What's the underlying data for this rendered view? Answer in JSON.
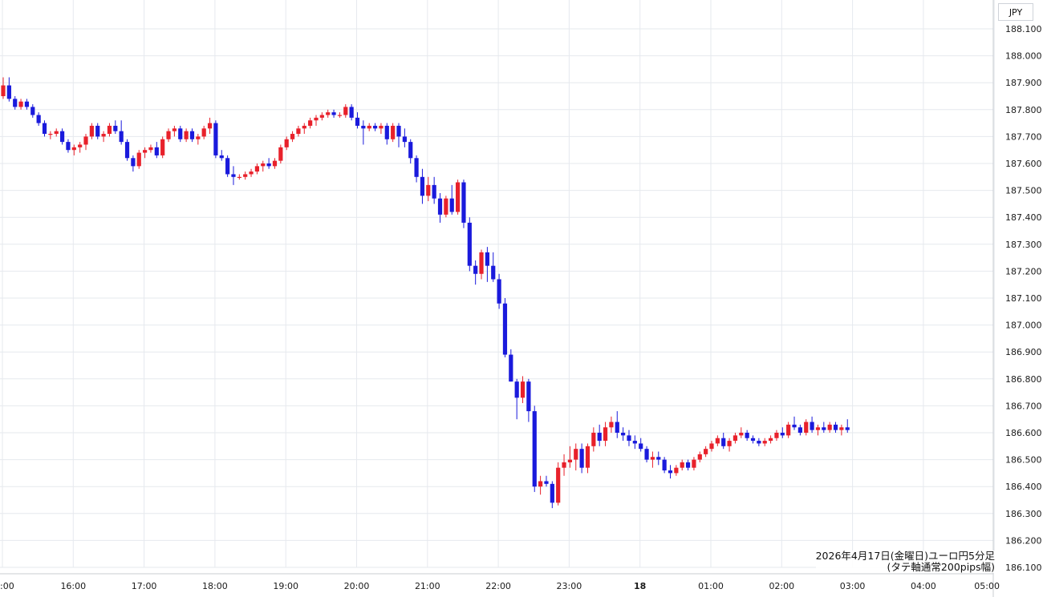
{
  "currency_label": "JPY",
  "caption": {
    "line1": "2026年4月17日(金曜日)ユーロ円5分足",
    "line2": "(タテ軸通常200pips幅)"
  },
  "colors": {
    "up": "#e8212b",
    "down": "#1a1adc",
    "grid": "#e6e9ee"
  },
  "chart_data": {
    "type": "candlestick",
    "ylim": [
      186.1,
      188.1
    ],
    "y_ticks": [
      "188.100",
      "188.000",
      "187.900",
      "187.800",
      "187.700",
      "187.600",
      "187.500",
      "187.400",
      "187.300",
      "187.200",
      "187.100",
      "187.000",
      "186.900",
      "186.800",
      "186.700",
      "186.600",
      "186.500",
      "186.400",
      "186.300",
      "186.200",
      "186.100"
    ],
    "x_ticks": [
      {
        "label": ":00",
        "t": 0,
        "bold": false
      },
      {
        "label": "16:00",
        "t": 1,
        "bold": false
      },
      {
        "label": "17:00",
        "t": 2,
        "bold": false
      },
      {
        "label": "18:00",
        "t": 3,
        "bold": false
      },
      {
        "label": "19:00",
        "t": 4,
        "bold": false
      },
      {
        "label": "20:00",
        "t": 5,
        "bold": false
      },
      {
        "label": "21:00",
        "t": 6,
        "bold": false
      },
      {
        "label": "22:00",
        "t": 7,
        "bold": false
      },
      {
        "label": "23:00",
        "t": 8,
        "bold": false
      },
      {
        "label": "18",
        "t": 9,
        "bold": true
      },
      {
        "label": "01:00",
        "t": 10,
        "bold": false
      },
      {
        "label": "02:00",
        "t": 11,
        "bold": false
      },
      {
        "label": "03:00",
        "t": 12,
        "bold": false
      },
      {
        "label": "04:00",
        "t": 13,
        "bold": false
      },
      {
        "label": "05:00",
        "t": 14,
        "bold": false
      }
    ],
    "candles": [
      [
        187.85,
        187.92,
        187.84,
        187.89
      ],
      [
        187.89,
        187.92,
        187.83,
        187.84
      ],
      [
        187.84,
        187.85,
        187.8,
        187.81
      ],
      [
        187.81,
        187.84,
        187.8,
        187.83
      ],
      [
        187.83,
        187.84,
        187.8,
        187.81
      ],
      [
        187.81,
        187.82,
        187.77,
        187.78
      ],
      [
        187.78,
        187.79,
        187.74,
        187.75
      ],
      [
        187.75,
        187.76,
        187.7,
        187.71
      ],
      [
        187.71,
        187.72,
        187.69,
        187.71
      ],
      [
        187.71,
        187.73,
        187.7,
        187.72
      ],
      [
        187.72,
        187.73,
        187.67,
        187.68
      ],
      [
        187.68,
        187.69,
        187.64,
        187.65
      ],
      [
        187.65,
        187.67,
        187.63,
        187.66
      ],
      [
        187.66,
        187.68,
        187.64,
        187.67
      ],
      [
        187.67,
        187.71,
        187.65,
        187.7
      ],
      [
        187.7,
        187.75,
        187.69,
        187.74
      ],
      [
        187.74,
        187.75,
        187.69,
        187.7
      ],
      [
        187.7,
        187.72,
        187.68,
        187.71
      ],
      [
        187.71,
        187.75,
        187.7,
        187.74
      ],
      [
        187.74,
        187.76,
        187.71,
        187.72
      ],
      [
        187.72,
        187.76,
        187.67,
        187.68
      ],
      [
        187.68,
        187.69,
        187.61,
        187.62
      ],
      [
        187.62,
        187.63,
        187.57,
        187.59
      ],
      [
        187.59,
        187.65,
        187.58,
        187.64
      ],
      [
        187.64,
        187.66,
        187.62,
        187.65
      ],
      [
        187.65,
        187.67,
        187.64,
        187.66
      ],
      [
        187.66,
        187.68,
        187.62,
        187.63
      ],
      [
        187.63,
        187.7,
        187.62,
        187.69
      ],
      [
        187.69,
        187.73,
        187.68,
        187.72
      ],
      [
        187.72,
        187.74,
        187.7,
        187.73
      ],
      [
        187.73,
        187.74,
        187.68,
        187.69
      ],
      [
        187.69,
        187.73,
        187.68,
        187.72
      ],
      [
        187.72,
        187.73,
        187.68,
        187.69
      ],
      [
        187.69,
        187.71,
        187.67,
        187.7
      ],
      [
        187.7,
        187.74,
        187.69,
        187.73
      ],
      [
        187.73,
        187.77,
        187.71,
        187.75
      ],
      [
        187.75,
        187.76,
        187.62,
        187.63
      ],
      [
        187.63,
        187.65,
        187.61,
        187.62
      ],
      [
        187.62,
        187.63,
        187.55,
        187.56
      ],
      [
        187.56,
        187.59,
        187.52,
        187.55
      ],
      [
        187.55,
        187.56,
        187.54,
        187.55
      ],
      [
        187.55,
        187.57,
        187.54,
        187.56
      ],
      [
        187.56,
        187.58,
        187.55,
        187.57
      ],
      [
        187.57,
        187.6,
        187.56,
        187.59
      ],
      [
        187.59,
        187.61,
        187.57,
        187.6
      ],
      [
        187.6,
        187.62,
        187.58,
        187.59
      ],
      [
        187.59,
        187.62,
        187.58,
        187.61
      ],
      [
        187.61,
        187.67,
        187.6,
        187.66
      ],
      [
        187.66,
        187.7,
        187.65,
        187.69
      ],
      [
        187.69,
        187.72,
        187.68,
        187.71
      ],
      [
        187.71,
        187.74,
        187.7,
        187.73
      ],
      [
        187.73,
        187.75,
        187.71,
        187.74
      ],
      [
        187.74,
        187.77,
        187.73,
        187.76
      ],
      [
        187.76,
        187.78,
        187.74,
        187.77
      ],
      [
        187.77,
        187.79,
        187.76,
        187.78
      ],
      [
        187.78,
        187.8,
        187.77,
        187.79
      ],
      [
        187.79,
        187.8,
        187.77,
        187.78
      ],
      [
        187.78,
        187.79,
        187.77,
        187.78
      ],
      [
        187.78,
        187.82,
        187.77,
        187.81
      ],
      [
        187.81,
        187.82,
        187.76,
        187.77
      ],
      [
        187.77,
        187.79,
        187.73,
        187.74
      ],
      [
        187.74,
        187.76,
        187.67,
        187.73
      ],
      [
        187.73,
        187.75,
        187.72,
        187.74
      ],
      [
        187.74,
        187.75,
        187.72,
        187.73
      ],
      [
        187.73,
        187.75,
        187.71,
        187.74
      ],
      [
        187.74,
        187.75,
        187.67,
        187.69
      ],
      [
        187.69,
        187.75,
        187.68,
        187.74
      ],
      [
        187.74,
        187.75,
        187.66,
        187.7
      ],
      [
        187.7,
        187.73,
        187.66,
        187.68
      ],
      [
        187.68,
        187.69,
        187.6,
        187.62
      ],
      [
        187.62,
        187.63,
        187.53,
        187.55
      ],
      [
        187.55,
        187.58,
        187.45,
        187.48
      ],
      [
        187.48,
        187.55,
        187.46,
        187.52
      ],
      [
        187.52,
        187.55,
        187.45,
        187.47
      ],
      [
        187.47,
        187.49,
        187.38,
        187.41
      ],
      [
        187.41,
        187.48,
        187.4,
        187.47
      ],
      [
        187.47,
        187.52,
        187.41,
        187.42
      ],
      [
        187.42,
        187.54,
        187.41,
        187.53
      ],
      [
        187.53,
        187.54,
        187.36,
        187.38
      ],
      [
        187.38,
        187.4,
        187.2,
        187.22
      ],
      [
        187.22,
        187.24,
        187.15,
        187.19
      ],
      [
        187.19,
        187.28,
        187.17,
        187.27
      ],
      [
        187.27,
        187.29,
        187.16,
        187.22
      ],
      [
        187.22,
        187.27,
        187.16,
        187.17
      ],
      [
        187.17,
        187.19,
        187.06,
        187.08
      ],
      [
        187.08,
        187.1,
        186.88,
        186.89
      ],
      [
        186.89,
        186.91,
        186.79,
        186.79
      ],
      [
        186.79,
        186.8,
        186.65,
        186.73
      ],
      [
        186.73,
        186.81,
        186.71,
        186.79
      ],
      [
        186.79,
        186.8,
        186.64,
        186.68
      ],
      [
        186.68,
        186.7,
        186.38,
        186.4
      ],
      [
        186.4,
        186.44,
        186.37,
        186.42
      ],
      [
        186.42,
        186.44,
        186.4,
        186.41
      ],
      [
        186.41,
        186.42,
        186.32,
        186.34
      ],
      [
        186.34,
        186.49,
        186.33,
        186.47
      ],
      [
        186.47,
        186.52,
        186.44,
        186.49
      ],
      [
        186.49,
        186.55,
        186.47,
        186.5
      ],
      [
        186.5,
        186.56,
        186.46,
        186.54
      ],
      [
        186.54,
        186.56,
        186.45,
        186.47
      ],
      [
        186.47,
        186.56,
        186.45,
        186.55
      ],
      [
        186.55,
        186.62,
        186.53,
        186.6
      ],
      [
        186.6,
        186.63,
        186.55,
        186.57
      ],
      [
        186.57,
        186.64,
        186.55,
        186.62
      ],
      [
        186.62,
        186.66,
        186.6,
        186.64
      ],
      [
        186.64,
        186.68,
        186.58,
        186.6
      ],
      [
        186.6,
        186.62,
        186.57,
        186.59
      ],
      [
        186.59,
        186.61,
        186.55,
        186.57
      ],
      [
        186.57,
        186.59,
        186.54,
        186.56
      ],
      [
        186.56,
        186.58,
        186.53,
        186.54
      ],
      [
        186.54,
        186.55,
        186.49,
        186.5
      ],
      [
        186.5,
        186.53,
        186.47,
        186.51
      ],
      [
        186.51,
        186.53,
        186.48,
        186.5
      ],
      [
        186.5,
        186.51,
        186.45,
        186.46
      ],
      [
        186.46,
        186.48,
        186.43,
        186.45
      ],
      [
        186.45,
        186.48,
        186.44,
        186.47
      ],
      [
        186.47,
        186.5,
        186.46,
        186.49
      ],
      [
        186.49,
        186.5,
        186.46,
        186.47
      ],
      [
        186.47,
        186.51,
        186.46,
        186.5
      ],
      [
        186.5,
        186.53,
        186.49,
        186.52
      ],
      [
        186.52,
        186.55,
        186.51,
        186.54
      ],
      [
        186.54,
        186.57,
        186.53,
        186.56
      ],
      [
        186.56,
        186.59,
        186.55,
        186.58
      ],
      [
        186.58,
        186.6,
        186.54,
        186.55
      ],
      [
        186.55,
        186.58,
        186.53,
        186.57
      ],
      [
        186.57,
        186.6,
        186.56,
        186.59
      ],
      [
        186.59,
        186.62,
        186.58,
        186.6
      ],
      [
        186.6,
        186.61,
        186.57,
        186.58
      ],
      [
        186.58,
        186.59,
        186.56,
        186.57
      ],
      [
        186.57,
        186.58,
        186.55,
        186.56
      ],
      [
        186.56,
        186.58,
        186.55,
        186.57
      ],
      [
        186.57,
        186.59,
        186.56,
        186.58
      ],
      [
        186.58,
        186.61,
        186.57,
        186.6
      ],
      [
        186.6,
        186.62,
        186.58,
        186.59
      ],
      [
        186.59,
        186.64,
        186.58,
        186.63
      ],
      [
        186.63,
        186.66,
        186.61,
        186.62
      ],
      [
        186.62,
        186.63,
        186.59,
        186.6
      ],
      [
        186.6,
        186.65,
        186.59,
        186.64
      ],
      [
        186.64,
        186.66,
        186.6,
        186.61
      ],
      [
        186.61,
        186.63,
        186.59,
        186.62
      ],
      [
        186.62,
        186.64,
        186.6,
        186.61
      ],
      [
        186.61,
        186.64,
        186.6,
        186.63
      ],
      [
        186.63,
        186.64,
        186.6,
        186.61
      ],
      [
        186.61,
        186.63,
        186.59,
        186.62
      ],
      [
        186.62,
        186.65,
        186.6,
        186.61
      ]
    ]
  }
}
